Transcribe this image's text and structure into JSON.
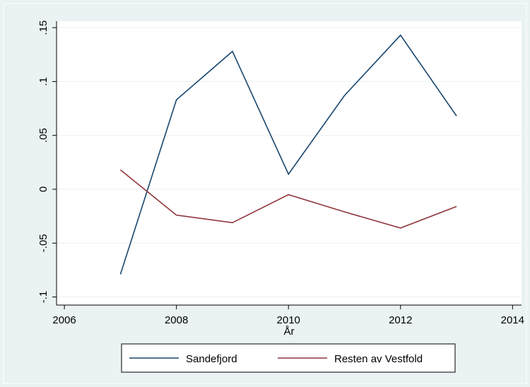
{
  "chart_data": {
    "type": "line",
    "x_label": "År",
    "x": [
      2007,
      2008,
      2009,
      2010,
      2011,
      2012,
      2013
    ],
    "series": [
      {
        "name": "Sandefjord",
        "color": "#1a476f",
        "values": [
          -0.079,
          0.083,
          0.128,
          0.014,
          0.087,
          0.143,
          0.068
        ]
      },
      {
        "name": "Resten av Vestfold",
        "color": "#90353b",
        "values": [
          0.018,
          -0.024,
          -0.031,
          -0.005,
          -0.021,
          -0.036,
          -0.016
        ]
      }
    ],
    "xlim": [
      2005.86,
      2014.16
    ],
    "ylim": [
      -0.1075,
      0.156
    ],
    "xticks": [
      2006,
      2008,
      2010,
      2012,
      2014
    ],
    "yticks": [
      {
        "value": 0.15,
        "label": ".15"
      },
      {
        "value": 0.1,
        "label": ".1"
      },
      {
        "value": 0.05,
        "label": ".05"
      },
      {
        "value": 0,
        "label": "0"
      },
      {
        "value": -0.05,
        "label": "-.05"
      },
      {
        "value": -0.1,
        "label": "-.1"
      }
    ],
    "grid": true,
    "legend_position": "bottom"
  }
}
